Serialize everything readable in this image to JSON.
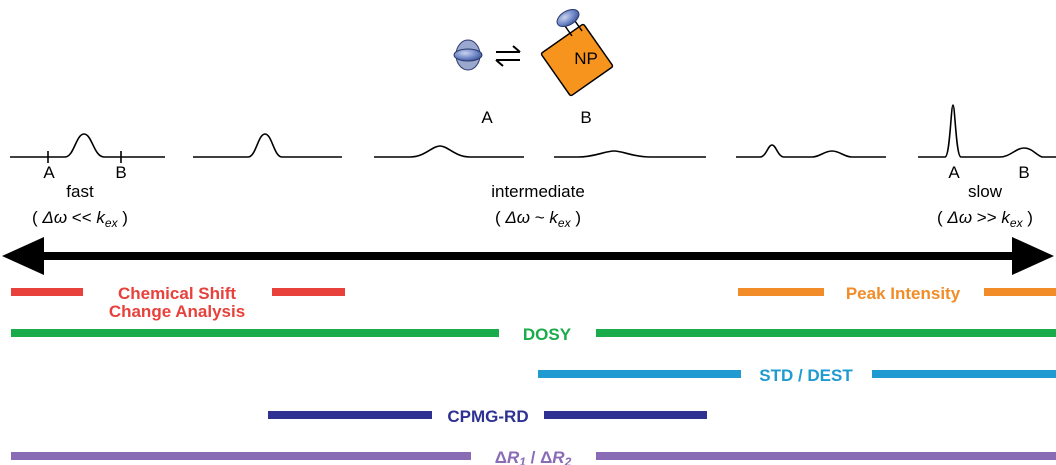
{
  "complex": {
    "free_label": "A",
    "bound_label": "B",
    "np_label": "NP",
    "exchange_icon": "equilibrium-arrows"
  },
  "peaks": {
    "fast_a": "A",
    "fast_b": "B",
    "slow_a": "A",
    "slow_b": "B"
  },
  "regimes": {
    "fast": {
      "name": "fast",
      "cond_open": "( ",
      "dw": "Δω",
      "rel": " << ",
      "k": "k",
      "sub": "ex",
      "cond_close": " )"
    },
    "intermediate": {
      "name": "intermediate",
      "cond_open": "( ",
      "dw": "Δω",
      "rel": " ~ ",
      "k": "k",
      "sub": "ex",
      "cond_close": " )"
    },
    "slow": {
      "name": "slow",
      "cond_open": "( ",
      "dw": "Δω",
      "rel": " >> ",
      "k": "k",
      "sub": "ex",
      "cond_close": " )"
    }
  },
  "methods": [
    {
      "id": "csp",
      "line1": "Chemical Shift",
      "line2": "Change Analysis",
      "color": "#e8413c"
    },
    {
      "id": "peak",
      "label": "Peak Intensity",
      "color": "#f28c28"
    },
    {
      "id": "dosy",
      "label": "DOSY",
      "color": "#1aab4b"
    },
    {
      "id": "std",
      "label": "STD / DEST",
      "color": "#1f9bd1"
    },
    {
      "id": "cpmg",
      "label": "CPMG-RD",
      "color": "#2e3192"
    },
    {
      "id": "relax",
      "d1": "Δ",
      "r1": "R",
      "s1": "1",
      "sep": " / ",
      "d2": "Δ",
      "r2": "R",
      "s2": "2",
      "color": "#8a6bb6"
    }
  ],
  "colors": {
    "np_fill": "#f7941d",
    "protein_blue": "#6e86c6",
    "axis": "#000000"
  }
}
